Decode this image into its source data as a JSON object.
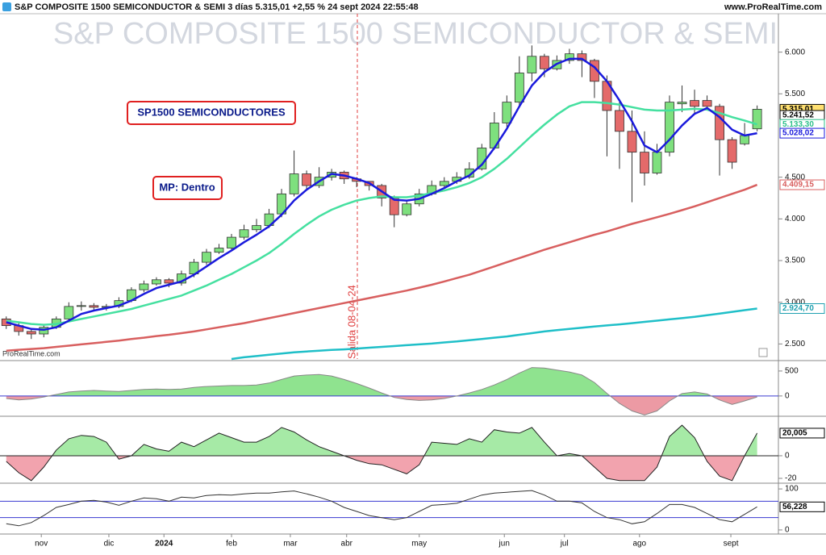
{
  "header": {
    "title": "S&P COMPOSITE 1500 SEMICONDUCTOR & SEMI 3 días 5.315,01 +2,55 % 24 sept 2024 22:55:48",
    "site": "www.ProRealTime.com"
  },
  "annotations": {
    "box1": "SP1500 SEMICONDUCTORES",
    "box2": "MP: Dentro",
    "exit": "Salida 08-04-24",
    "credit": "ProRealTime.com"
  },
  "chart_data": [
    {
      "type": "candlestick",
      "title": "S&P COMPOSITE 1500 SEMICONDUCTOR & SEMI",
      "up_color": "#7ee07e",
      "down_color": "#e46a6a",
      "xlim": [
        -0.5,
        61.7
      ],
      "xticks": [
        {
          "value": 2.8,
          "label": "nov"
        },
        {
          "value": 8.2,
          "label": "dic"
        },
        {
          "value": 12.6,
          "label": "2024"
        },
        {
          "value": 18,
          "label": "feb"
        },
        {
          "value": 22.7,
          "label": "mar"
        },
        {
          "value": 27.2,
          "label": "abr"
        },
        {
          "value": 33,
          "label": "may"
        },
        {
          "value": 39.8,
          "label": "jun"
        },
        {
          "value": 44.6,
          "label": "jul"
        },
        {
          "value": 50.6,
          "label": "ago"
        },
        {
          "value": 57.9,
          "label": "sept"
        }
      ],
      "ylim": [
        2320,
        6480
      ],
      "yticks": [
        {
          "value": 6000,
          "label": "6.000"
        },
        {
          "value": 5500,
          "label": "5.500"
        },
        {
          "value": 4500,
          "label": "4.500"
        },
        {
          "value": 4000,
          "label": "4.000"
        },
        {
          "value": 3500,
          "label": "3.500"
        },
        {
          "value": 3000,
          "label": "3.000"
        },
        {
          "value": 2500,
          "label": "2.500"
        }
      ],
      "open": [
        2800,
        2720,
        2650,
        2620,
        2700,
        2800,
        2950,
        2960,
        2940,
        2950,
        3020,
        3150,
        3220,
        3270,
        3230,
        3340,
        3480,
        3600,
        3650,
        3780,
        3870,
        3920,
        4060,
        4300,
        4540,
        4400,
        4500,
        4560,
        4480,
        4450,
        4400,
        4250,
        4050,
        4180,
        4300,
        4400,
        4450,
        4500,
        4600,
        4850,
        5150,
        5400,
        5750,
        5950,
        5800,
        5900,
        5980,
        5900,
        5650,
        5300,
        5050,
        4800,
        4550,
        4800,
        5380,
        5420,
        5420,
        5350,
        4950,
        4900,
        5080
      ],
      "high": [
        2830,
        2760,
        2680,
        2720,
        2830,
        3000,
        3010,
        2990,
        2980,
        3060,
        3180,
        3260,
        3300,
        3290,
        3380,
        3520,
        3640,
        3700,
        3820,
        3930,
        4000,
        4120,
        4360,
        4820,
        4580,
        4620,
        4600,
        4580,
        4500,
        4440,
        4420,
        4280,
        4220,
        4360,
        4460,
        4500,
        4560,
        4680,
        4900,
        5280,
        5480,
        5950,
        6080,
        5980,
        5960,
        6040,
        6020,
        5920,
        5720,
        5400,
        5300,
        5050,
        4900,
        5480,
        5600,
        5550,
        5480,
        5380,
        4980,
        5150,
        5360
      ],
      "low": [
        2680,
        2600,
        2560,
        2580,
        2680,
        2780,
        2900,
        2900,
        2900,
        2930,
        3000,
        3120,
        3200,
        3180,
        3200,
        3300,
        3450,
        3580,
        3620,
        3750,
        3840,
        3890,
        4020,
        4270,
        4350,
        4370,
        4460,
        4420,
        4380,
        4340,
        4150,
        3900,
        4030,
        4150,
        4280,
        4370,
        4420,
        4480,
        4580,
        4830,
        5100,
        5350,
        5650,
        5700,
        5780,
        5860,
        5700,
        5450,
        4750,
        4600,
        4200,
        4400,
        4530,
        4750,
        5280,
        5250,
        5300,
        4520,
        4600,
        4880,
        5050
      ],
      "close": [
        2720,
        2650,
        2620,
        2700,
        2800,
        2950,
        2960,
        2940,
        2950,
        3020,
        3150,
        3220,
        3270,
        3230,
        3340,
        3480,
        3600,
        3650,
        3780,
        3870,
        3920,
        4060,
        4300,
        4540,
        4400,
        4500,
        4560,
        4480,
        4450,
        4400,
        4250,
        4050,
        4180,
        4300,
        4400,
        4450,
        4500,
        4600,
        4850,
        5150,
        5400,
        5750,
        5950,
        5800,
        5900,
        5980,
        5900,
        5650,
        5300,
        5050,
        4800,
        4550,
        4800,
        5400,
        5400,
        5350,
        5350,
        4950,
        4680,
        5000,
        5315.01
      ],
      "series": [
        {
          "color": "#d85f5f",
          "values": [
            2420,
            2430,
            2440,
            2450,
            2465,
            2480,
            2495,
            2510,
            2525,
            2540,
            2560,
            2575,
            2595,
            2610,
            2630,
            2650,
            2675,
            2700,
            2725,
            2750,
            2780,
            2810,
            2840,
            2870,
            2900,
            2930,
            2960,
            2990,
            3020,
            3050,
            3080,
            3110,
            3140,
            3175,
            3210,
            3250,
            3290,
            3330,
            3380,
            3430,
            3480,
            3530,
            3580,
            3630,
            3675,
            3720,
            3765,
            3810,
            3850,
            3895,
            3940,
            3980,
            4020,
            4060,
            4105,
            4150,
            4200,
            4250,
            4300,
            4350,
            4409.15
          ]
        },
        {
          "color": "#1fbfc8",
          "values": [
            null,
            null,
            null,
            null,
            null,
            null,
            null,
            null,
            null,
            null,
            null,
            null,
            null,
            null,
            null,
            null,
            null,
            null,
            2320,
            2340,
            2355,
            2370,
            2385,
            2400,
            2410,
            2420,
            2428,
            2435,
            2445,
            2455,
            2465,
            2475,
            2485,
            2495,
            2505,
            2518,
            2530,
            2545,
            2560,
            2575,
            2590,
            2610,
            2630,
            2650,
            2665,
            2680,
            2695,
            2710,
            2722,
            2735,
            2750,
            2765,
            2780,
            2795,
            2810,
            2825,
            2845,
            2865,
            2885,
            2905,
            2924.7
          ]
        },
        {
          "color": "#45e0a0",
          "values": [
            2780,
            2760,
            2740,
            2730,
            2740,
            2770,
            2800,
            2830,
            2860,
            2890,
            2920,
            2960,
            3000,
            3040,
            3080,
            3140,
            3200,
            3270,
            3340,
            3420,
            3500,
            3590,
            3700,
            3820,
            3930,
            4030,
            4110,
            4170,
            4220,
            4250,
            4270,
            4260,
            4260,
            4280,
            4310,
            4340,
            4380,
            4430,
            4500,
            4600,
            4720,
            4860,
            5000,
            5130,
            5250,
            5350,
            5400,
            5400,
            5390,
            5370,
            5340,
            5310,
            5300,
            5300,
            5310,
            5320,
            5310,
            5270,
            5220,
            5180,
            5133.3
          ]
        },
        {
          "color": "#1a1adc",
          "values": [
            2760,
            2720,
            2680,
            2670,
            2700,
            2780,
            2860,
            2900,
            2930,
            2960,
            3020,
            3100,
            3170,
            3210,
            3250,
            3330,
            3430,
            3530,
            3620,
            3720,
            3810,
            3910,
            4050,
            4220,
            4350,
            4450,
            4540,
            4520,
            4480,
            4430,
            4330,
            4230,
            4220,
            4240,
            4300,
            4370,
            4450,
            4520,
            4650,
            4850,
            5080,
            5350,
            5600,
            5760,
            5860,
            5920,
            5920,
            5820,
            5650,
            5420,
            5170,
            4880,
            4800,
            4950,
            5120,
            5260,
            5330,
            5220,
            5070,
            5000,
            5028.02
          ]
        }
      ],
      "last_labels": [
        {
          "value": 5315.01,
          "label": "5.315,01",
          "color": "#000000",
          "fill": "#ffe070"
        },
        {
          "value": 5241.52,
          "label": "5.241,52",
          "color": "#000000",
          "fill": "#ffffff"
        },
        {
          "value": 5133.3,
          "label": "5.133,30",
          "color": "#2cc08a",
          "fill": "#ffffff"
        },
        {
          "value": 5028.02,
          "label": "5.028,02",
          "color": "#1a1adc",
          "fill": "#ffffff"
        },
        {
          "value": 4409.15,
          "label": "4.409,15",
          "color": "#d85f5f",
          "fill": "#ffffff"
        },
        {
          "value": 2924.7,
          "label": "2.924,70",
          "color": "#1fa0b0",
          "fill": "#ffffff"
        }
      ]
    },
    {
      "type": "area",
      "color": "#888888",
      "up_color": "#8fe38f",
      "down_color": "#ec9aa4",
      "zero_color": "#3a3ad0",
      "ylim": [
        -390,
        660
      ],
      "yticks": [
        500,
        0
      ],
      "values": [
        -50,
        -80,
        -60,
        -20,
        30,
        80,
        100,
        110,
        100,
        90,
        110,
        130,
        140,
        130,
        140,
        170,
        190,
        200,
        210,
        210,
        220,
        260,
        330,
        400,
        420,
        430,
        400,
        330,
        250,
        160,
        60,
        -30,
        -70,
        -90,
        -80,
        -50,
        0,
        60,
        130,
        220,
        330,
        460,
        570,
        560,
        520,
        480,
        420,
        270,
        50,
        -150,
        -300,
        -380,
        -300,
        -100,
        50,
        80,
        40,
        -80,
        -170,
        -100,
        -20
      ]
    },
    {
      "type": "area",
      "color": "#222222",
      "up_color": "#a6eaa6",
      "down_color": "#f2a3ae",
      "zero_color": "#222222",
      "ylim": [
        -25,
        33.5
      ],
      "yticks": [
        0,
        -20
      ],
      "values": [
        -5,
        -15,
        -22,
        -10,
        5,
        15,
        18,
        17,
        12,
        -3,
        0,
        10,
        6,
        4,
        12,
        8,
        14,
        20,
        16,
        12,
        12,
        17,
        25,
        21,
        14,
        8,
        4,
        0,
        -4,
        -7,
        -8,
        -12,
        -16,
        -8,
        12,
        11,
        10,
        15,
        12,
        23,
        21,
        20,
        25,
        12,
        0,
        2,
        0,
        -10,
        -20,
        -22,
        -22,
        -22,
        -10,
        17,
        27,
        16,
        -5,
        -18,
        -22,
        0,
        20.005
      ],
      "last_labels": [
        {
          "value": 20.005,
          "label": "20,005",
          "color": "#000000",
          "fill": "#ffffff"
        }
      ]
    },
    {
      "type": "line",
      "color": "#333333",
      "level_color": "#3a3ad0",
      "ylim": [
        -10,
        112
      ],
      "yticks": [
        100,
        0
      ],
      "levels": [
        70,
        30
      ],
      "values": [
        15,
        10,
        18,
        35,
        55,
        62,
        70,
        72,
        68,
        60,
        70,
        78,
        76,
        70,
        80,
        78,
        84,
        86,
        85,
        88,
        90,
        90,
        93,
        95,
        88,
        80,
        70,
        55,
        45,
        35,
        30,
        25,
        30,
        45,
        60,
        62,
        65,
        75,
        85,
        90,
        92,
        94,
        96,
        85,
        70,
        70,
        66,
        45,
        30,
        25,
        15,
        20,
        40,
        62,
        62,
        55,
        40,
        25,
        20,
        38,
        56.228
      ],
      "last_labels": [
        {
          "value": 56.228,
          "label": "56,228",
          "color": "#000000",
          "fill": "#ffffff"
        }
      ]
    }
  ]
}
